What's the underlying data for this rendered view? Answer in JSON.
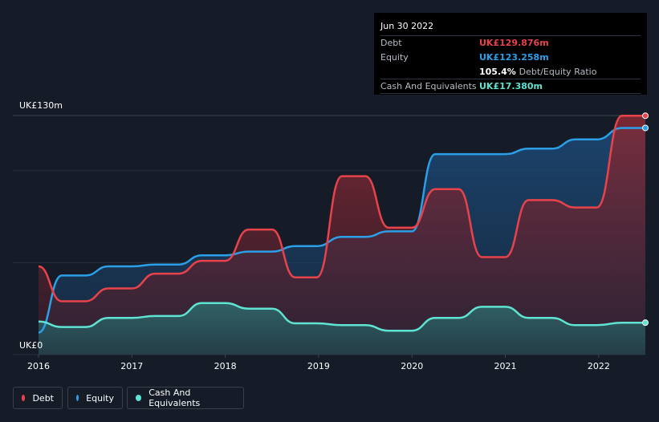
{
  "tooltip": {
    "date": "Jun 30 2022",
    "rows": [
      {
        "label": "Debt",
        "value": "UK£129.876m",
        "color": "#e8434b"
      },
      {
        "label": "Equity",
        "value": "UK£123.258m",
        "color": "#2b9fe8"
      },
      {
        "label": "",
        "value": "105.4%",
        "extra": "Debt/Equity Ratio",
        "color": "#ffffff"
      },
      {
        "label": "Cash And Equivalents",
        "value": "UK£17.380m",
        "color": "#5fe3d2"
      }
    ]
  },
  "legend": [
    {
      "label": "Debt",
      "color": "#e8434b"
    },
    {
      "label": "Equity",
      "color": "#2b9fe8"
    },
    {
      "label": "Cash And Equivalents",
      "color": "#5fe3d2"
    }
  ],
  "chart_data": {
    "type": "area",
    "ytop_label": "UK£130m",
    "ybottom_label": "UK£0",
    "ylim": [
      0,
      130
    ],
    "xlim": [
      2016.0,
      2022.5
    ],
    "x_ticks": [
      "2016",
      "2017",
      "2018",
      "2019",
      "2020",
      "2021",
      "2022"
    ],
    "grid": true,
    "legend_position": "bottom-left",
    "series": [
      {
        "name": "Debt",
        "color": "#e8434b",
        "points": [
          [
            2016.0,
            48
          ],
          [
            2016.25,
            29
          ],
          [
            2016.5,
            29
          ],
          [
            2016.75,
            36
          ],
          [
            2017.0,
            36
          ],
          [
            2017.25,
            44
          ],
          [
            2017.5,
            44
          ],
          [
            2017.75,
            51
          ],
          [
            2018.0,
            51
          ],
          [
            2018.25,
            68
          ],
          [
            2018.5,
            68
          ],
          [
            2018.75,
            42
          ],
          [
            2018.98,
            42
          ],
          [
            2019.25,
            97
          ],
          [
            2019.5,
            97
          ],
          [
            2019.75,
            69
          ],
          [
            2020.0,
            69
          ],
          [
            2020.25,
            90
          ],
          [
            2020.5,
            90
          ],
          [
            2020.75,
            53
          ],
          [
            2021.0,
            53
          ],
          [
            2021.25,
            84
          ],
          [
            2021.5,
            84
          ],
          [
            2021.75,
            80
          ],
          [
            2021.98,
            80
          ],
          [
            2022.25,
            129.876
          ],
          [
            2022.5,
            129.876
          ]
        ]
      },
      {
        "name": "Equity",
        "color": "#2b9fe8",
        "points": [
          [
            2016.0,
            12
          ],
          [
            2016.25,
            43
          ],
          [
            2016.5,
            43
          ],
          [
            2016.75,
            48
          ],
          [
            2017.0,
            48
          ],
          [
            2017.25,
            49
          ],
          [
            2017.5,
            49
          ],
          [
            2017.75,
            54
          ],
          [
            2018.0,
            54
          ],
          [
            2018.25,
            56
          ],
          [
            2018.5,
            56
          ],
          [
            2018.75,
            59
          ],
          [
            2018.98,
            59
          ],
          [
            2019.25,
            64
          ],
          [
            2019.5,
            64
          ],
          [
            2019.75,
            67
          ],
          [
            2020.0,
            67
          ],
          [
            2020.25,
            109
          ],
          [
            2020.5,
            109
          ],
          [
            2020.75,
            109
          ],
          [
            2021.0,
            109
          ],
          [
            2021.25,
            112
          ],
          [
            2021.5,
            112
          ],
          [
            2021.75,
            117
          ],
          [
            2021.98,
            117
          ],
          [
            2022.25,
            123.258
          ],
          [
            2022.5,
            123.258
          ]
        ]
      },
      {
        "name": "Cash And Equivalents",
        "color": "#5fe3d2",
        "points": [
          [
            2016.0,
            18
          ],
          [
            2016.25,
            15
          ],
          [
            2016.5,
            15
          ],
          [
            2016.75,
            20
          ],
          [
            2017.0,
            20
          ],
          [
            2017.25,
            21
          ],
          [
            2017.5,
            21
          ],
          [
            2017.75,
            28
          ],
          [
            2018.0,
            28
          ],
          [
            2018.25,
            25
          ],
          [
            2018.5,
            25
          ],
          [
            2018.75,
            17
          ],
          [
            2018.98,
            17
          ],
          [
            2019.25,
            16
          ],
          [
            2019.5,
            16
          ],
          [
            2019.75,
            13
          ],
          [
            2020.0,
            13
          ],
          [
            2020.25,
            20
          ],
          [
            2020.5,
            20
          ],
          [
            2020.75,
            26
          ],
          [
            2021.0,
            26
          ],
          [
            2021.25,
            20
          ],
          [
            2021.5,
            20
          ],
          [
            2021.75,
            16
          ],
          [
            2021.98,
            16
          ],
          [
            2022.25,
            17.38
          ],
          [
            2022.5,
            17.38
          ]
        ]
      }
    ]
  }
}
